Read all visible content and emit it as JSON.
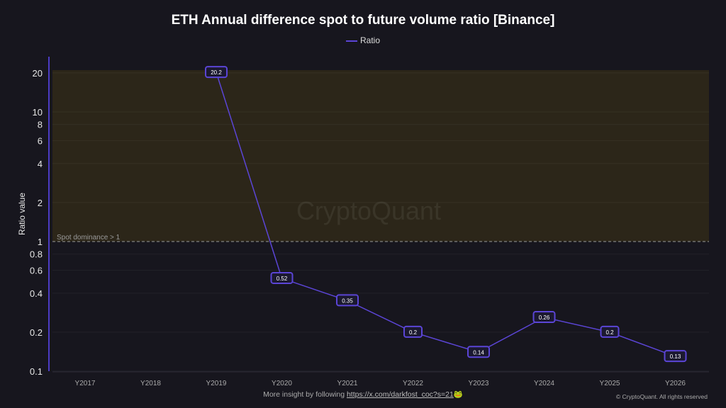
{
  "chart_data": {
    "type": "line",
    "title": "ETH Annual difference spot to future volume ratio [Binance]",
    "ylabel": "Ratio value",
    "xlabel": "",
    "yscale": "log",
    "ylim": [
      0.1,
      21
    ],
    "yticks": [
      0.1,
      0.2,
      0.4,
      0.6,
      0.8,
      1,
      2,
      4,
      6,
      8,
      10,
      20
    ],
    "categories": [
      "Y2017",
      "Y2018",
      "Y2019",
      "Y2020",
      "Y2021",
      "Y2022",
      "Y2023",
      "Y2024",
      "Y2025",
      "Y2026"
    ],
    "series": [
      {
        "name": "Ratio",
        "color": "#5b45d6",
        "values": [
          null,
          null,
          20.2,
          0.52,
          0.35,
          0.2,
          0.14,
          0.26,
          0.2,
          0.13
        ]
      }
    ],
    "annotations": [
      {
        "type": "band",
        "from": 1,
        "to": 21,
        "color": "#2c2619",
        "label": "Spot dominance > 1"
      }
    ],
    "legend": "top-center",
    "grid": true,
    "watermark": "CryptoQuant"
  },
  "footer": {
    "text": "More insight by following ",
    "link": "https://x.com/darkfost_coc?s=21",
    "emoji": "🐸",
    "copyright": "© CryptoQuant. All rights reserved"
  }
}
